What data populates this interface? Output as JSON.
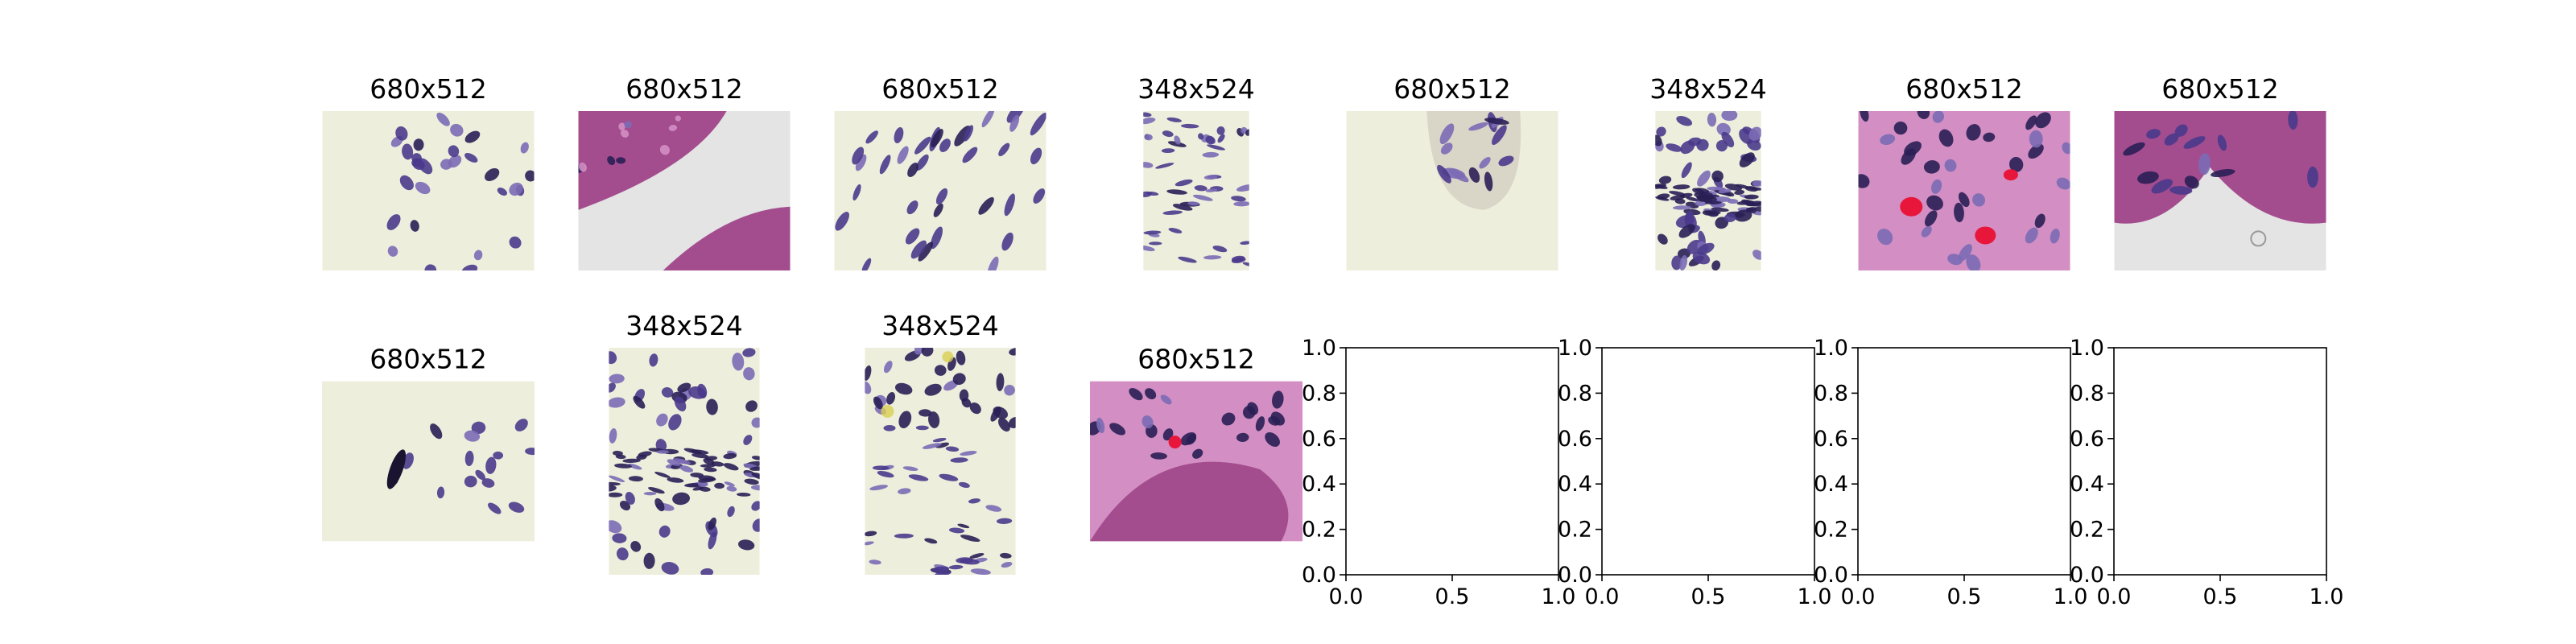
{
  "chart_data": {
    "type": "image-grid",
    "grid": {
      "rows": 2,
      "cols": 8
    },
    "panels": [
      {
        "title": "680x512",
        "kind": "image",
        "tissue": "sparse-nuclei"
      },
      {
        "title": "680x512",
        "kind": "image",
        "tissue": "epithelium-gap"
      },
      {
        "title": "680x512",
        "kind": "image",
        "tissue": "elongated-nuclei"
      },
      {
        "title": "348x524",
        "kind": "image",
        "tissue": "stroma"
      },
      {
        "title": "680x512",
        "kind": "image",
        "tissue": "crypt-tip"
      },
      {
        "title": "348x524",
        "kind": "image",
        "tissue": "dense-band"
      },
      {
        "title": "680x512",
        "kind": "image",
        "tissue": "inflamed"
      },
      {
        "title": "680x512",
        "kind": "image",
        "tissue": "goblet-epithelium"
      },
      {
        "title": "680x512",
        "kind": "image",
        "tissue": "dark-cluster"
      },
      {
        "title": "348x524",
        "kind": "image",
        "tissue": "dense-band"
      },
      {
        "title": "348x524",
        "kind": "image",
        "tissue": "stroma-yellow"
      },
      {
        "title": "680x512",
        "kind": "image",
        "tissue": "epithelium-fold"
      },
      {
        "title": "",
        "kind": "empty-axes",
        "xlim": [
          0,
          1
        ],
        "ylim": [
          0,
          1
        ],
        "xticks": [
          "0.0",
          "0.5",
          "1.0"
        ],
        "yticks": [
          "0.0",
          "0.2",
          "0.4",
          "0.6",
          "0.8",
          "1.0"
        ]
      },
      {
        "title": "",
        "kind": "empty-axes",
        "xlim": [
          0,
          1
        ],
        "ylim": [
          0,
          1
        ],
        "xticks": [
          "0.0",
          "0.5",
          "1.0"
        ],
        "yticks": [
          "0.0",
          "0.2",
          "0.4",
          "0.6",
          "0.8",
          "1.0"
        ]
      },
      {
        "title": "",
        "kind": "empty-axes",
        "xlim": [
          0,
          1
        ],
        "ylim": [
          0,
          1
        ],
        "xticks": [
          "0.0",
          "0.5",
          "1.0"
        ],
        "yticks": [
          "0.0",
          "0.2",
          "0.4",
          "0.6",
          "0.8",
          "1.0"
        ]
      },
      {
        "title": "",
        "kind": "empty-axes",
        "xlim": [
          0,
          1
        ],
        "ylim": [
          0,
          1
        ],
        "xticks": [
          "0.0",
          "0.5",
          "1.0"
        ],
        "yticks": [
          "0.0",
          "0.2",
          "0.4",
          "0.6",
          "0.8",
          "1.0"
        ]
      }
    ]
  },
  "colors": {
    "background_light": "#eeeedd",
    "background_grey": "#e4e4e4",
    "nucleus": "#4a3a8c",
    "nucleus_dark": "#2a1f55",
    "nucleus_light": "#7b6bb5",
    "epithelium": "#a34d8f",
    "epithelium_light": "#d38fc3",
    "blood": "#e8163a",
    "yellow": "#d8cf52"
  }
}
